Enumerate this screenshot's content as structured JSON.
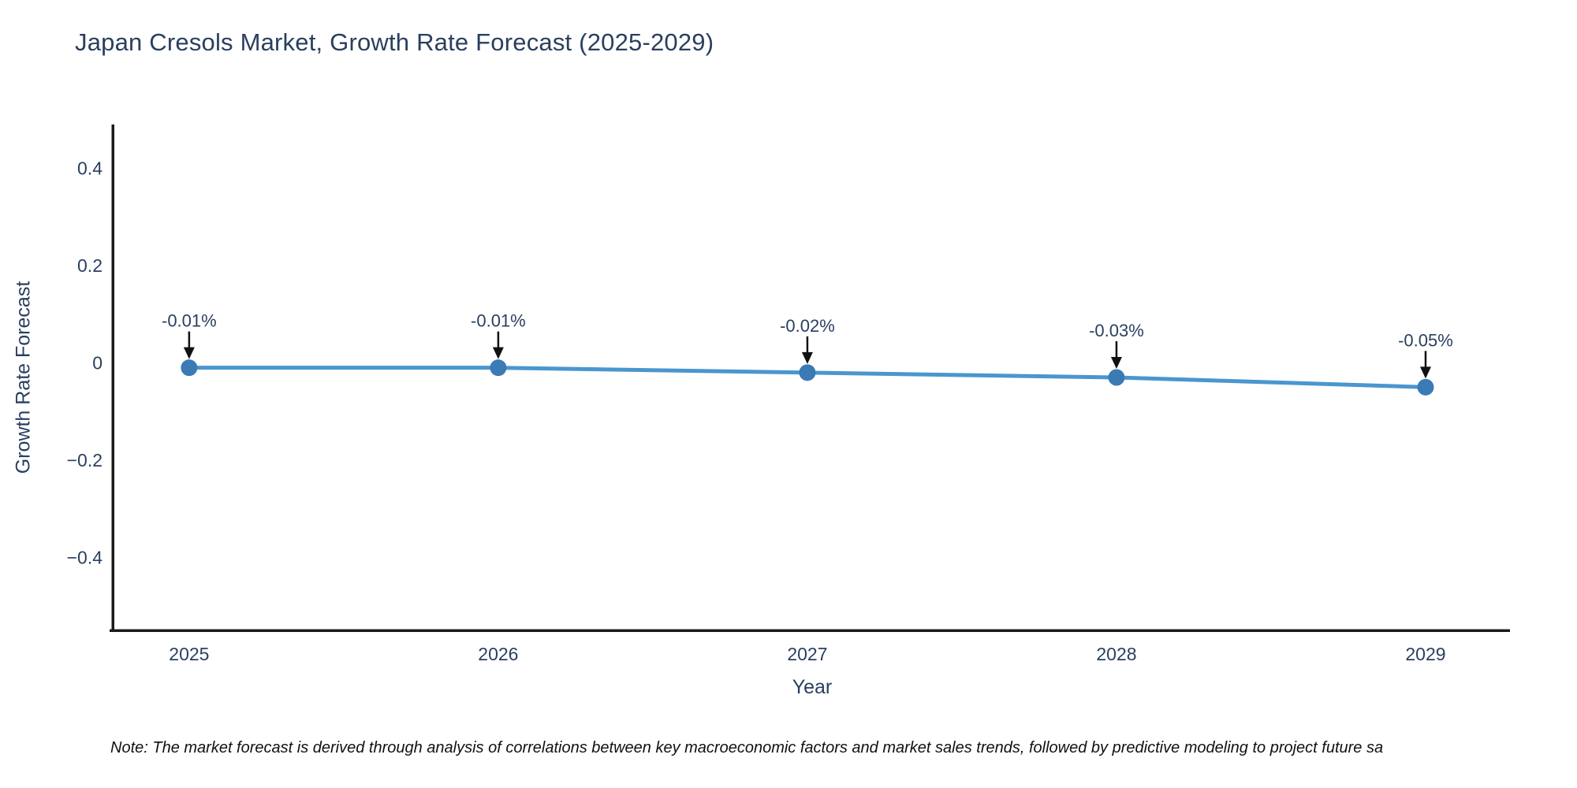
{
  "title": "Japan Cresols Market, Growth Rate Forecast (2025-2029)",
  "note": "Note: The market forecast is derived through analysis of correlations between key macroeconomic factors and market sales trends, followed by predictive modeling to project future sa",
  "chart_data": {
    "type": "line",
    "title": "Japan Cresols Market, Growth Rate Forecast (2025-2029)",
    "xlabel": "Year",
    "ylabel": "Growth Rate Forecast",
    "x": [
      2025,
      2026,
      2027,
      2028,
      2029
    ],
    "values": [
      -0.01,
      -0.01,
      -0.02,
      -0.03,
      -0.05
    ],
    "point_labels": [
      "-0.01%",
      "-0.01%",
      "-0.02%",
      "-0.03%",
      "-0.05%"
    ],
    "xtick_labels": [
      "2025",
      "2026",
      "2027",
      "2028",
      "2029"
    ],
    "ytick_values": [
      0.4,
      0.2,
      0,
      -0.2,
      -0.4
    ],
    "ytick_labels": [
      "0.4",
      "0.2",
      "0",
      "−0.2",
      "−0.4"
    ],
    "xlim": [
      2024.758,
      2029.273
    ],
    "ylim": [
      -0.55,
      0.49
    ],
    "grid": false,
    "legend": "none",
    "line_color": "#4a96cf",
    "marker_color": "#3a7ab5",
    "arrow_color": "#111111",
    "axis_color": "#1a1a1a",
    "text_color": "#2a3f5f"
  }
}
